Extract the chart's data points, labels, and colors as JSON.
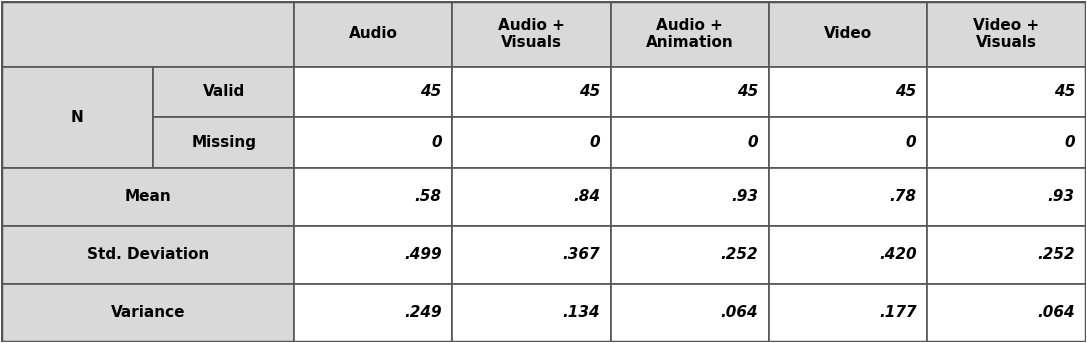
{
  "col_headers": [
    "Audio",
    "Audio +\nVisuals",
    "Audio +\nAnimation",
    "Video",
    "Video +\nVisuals"
  ],
  "row_labels": [
    [
      "N",
      "Valid"
    ],
    [
      "N",
      "Missing"
    ],
    [
      "Mean",
      ""
    ],
    [
      "Std. Deviation",
      ""
    ],
    [
      "Variance",
      ""
    ]
  ],
  "values": [
    [
      "45",
      "45",
      "45",
      "45",
      "45"
    ],
    [
      "0",
      "0",
      "0",
      "0",
      "0"
    ],
    [
      ".58",
      ".84",
      ".93",
      ".78",
      ".93"
    ],
    [
      ".499",
      ".367",
      ".252",
      ".420",
      ".252"
    ],
    [
      ".249",
      ".134",
      ".064",
      ".177",
      ".064"
    ]
  ],
  "bg_header": "#d9d9d9",
  "bg_row_label": "#d9d9d9",
  "bg_data": "#ffffff",
  "border_color": "#555555",
  "text_color": "#000000",
  "header_fontsize": 11,
  "data_fontsize": 11,
  "label_fontsize": 11
}
